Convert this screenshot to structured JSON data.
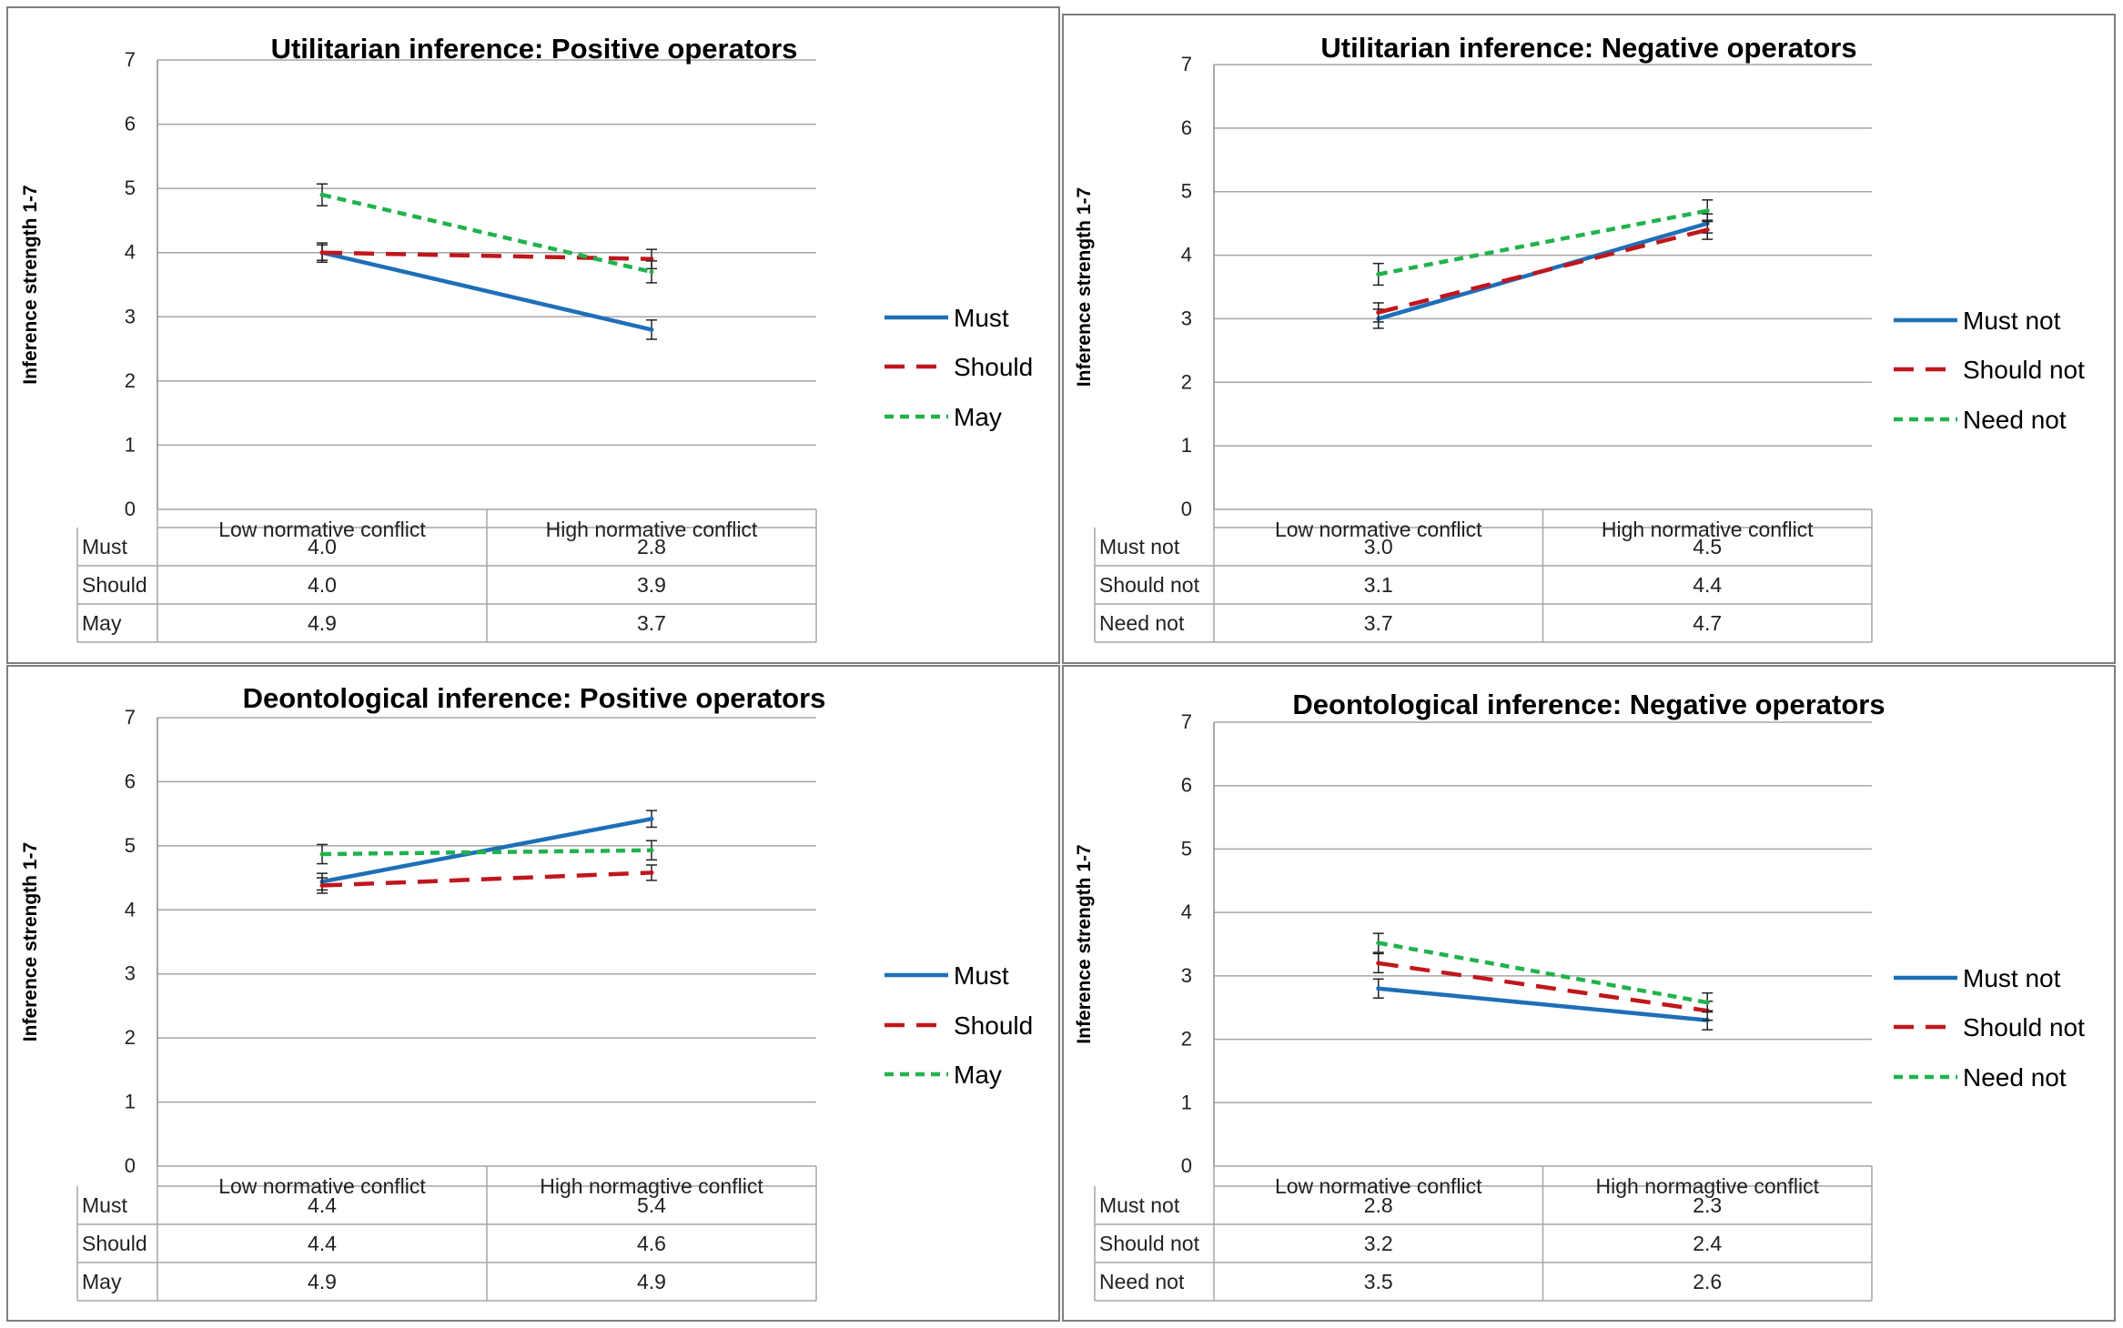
{
  "chart_data": [
    {
      "type": "line",
      "title": "Utilitarian inference: Positive operators",
      "ylabel": "Inference strength 1-7",
      "xlabel": "",
      "ylim": [
        0,
        7
      ],
      "yticks": [
        "0",
        "1",
        "2",
        "3",
        "4",
        "5",
        "6",
        "7"
      ],
      "categories": [
        "Low normative conflict",
        "High normative conflict"
      ],
      "legend_position": "right",
      "grid": true,
      "series": [
        {
          "name": "Must",
          "color": "#1f6fb8",
          "dash": "solid",
          "values": [
            4.0,
            2.8
          ],
          "labels": [
            "4.0",
            "2.8"
          ],
          "err": [
            0.15,
            0.15
          ]
        },
        {
          "name": "Should",
          "color": "#c0161c",
          "dash": "long",
          "values": [
            4.0,
            3.9
          ],
          "labels": [
            "4.0",
            "3.9"
          ],
          "err": [
            0.12,
            0.15
          ]
        },
        {
          "name": "May",
          "color": "#21b24c",
          "dash": "short",
          "values": [
            4.9,
            3.7
          ],
          "labels": [
            "4.9",
            "3.7"
          ],
          "err": [
            0.17,
            0.17
          ]
        }
      ]
    },
    {
      "type": "line",
      "title": "Utilitarian inference: Negative operators",
      "ylabel": "Inference strength 1-7",
      "xlabel": "",
      "ylim": [
        0,
        7
      ],
      "yticks": [
        "0",
        "1",
        "2",
        "3",
        "4",
        "5",
        "6",
        "7"
      ],
      "categories": [
        "Low normative conflict",
        "High normative conflict"
      ],
      "legend_position": "right",
      "grid": true,
      "series": [
        {
          "name": "Must not",
          "color": "#1f6fb8",
          "dash": "solid",
          "values": [
            3.0,
            4.5
          ],
          "labels": [
            "3.0",
            "4.5"
          ],
          "err": [
            0.15,
            0.15
          ]
        },
        {
          "name": "Should not",
          "color": "#c0161c",
          "dash": "long",
          "values": [
            3.1,
            4.4
          ],
          "labels": [
            "3.1",
            "4.4"
          ],
          "err": [
            0.15,
            0.15
          ]
        },
        {
          "name": "Need not",
          "color": "#21b24c",
          "dash": "short",
          "values": [
            3.7,
            4.7
          ],
          "labels": [
            "3.7",
            "4.7"
          ],
          "err": [
            0.17,
            0.17
          ]
        }
      ]
    },
    {
      "type": "line",
      "title": "Deontological inference: Positive operators",
      "ylabel": "Inference strength 1-7",
      "xlabel": "",
      "ylim": [
        0,
        7
      ],
      "yticks": [
        "0",
        "1",
        "2",
        "3",
        "4",
        "5",
        "6",
        "7"
      ],
      "categories": [
        "Low normative conflict",
        "High normagtive conflict"
      ],
      "legend_position": "right",
      "grid": true,
      "series": [
        {
          "name": "Must",
          "color": "#1f6fb8",
          "dash": "solid",
          "values": [
            4.44,
            5.42
          ],
          "labels": [
            "4.4",
            "5.4"
          ],
          "err": [
            0.13,
            0.13
          ]
        },
        {
          "name": "Should",
          "color": "#c0161c",
          "dash": "long",
          "values": [
            4.38,
            4.58
          ],
          "labels": [
            "4.4",
            "4.6"
          ],
          "err": [
            0.12,
            0.12
          ]
        },
        {
          "name": "May",
          "color": "#21b24c",
          "dash": "short",
          "values": [
            4.87,
            4.93
          ],
          "labels": [
            "4.9",
            "4.9"
          ],
          "err": [
            0.15,
            0.15
          ]
        }
      ]
    },
    {
      "type": "line",
      "title": "Deontological inference: Negative operators",
      "ylabel": "Inference strength 1-7",
      "xlabel": "",
      "ylim": [
        0,
        7
      ],
      "yticks": [
        "0",
        "1",
        "2",
        "3",
        "4",
        "5",
        "6",
        "7"
      ],
      "categories": [
        "Low normative conflict",
        "High normagtive conflict"
      ],
      "legend_position": "right",
      "grid": true,
      "series": [
        {
          "name": "Must not",
          "color": "#1f6fb8",
          "dash": "solid",
          "values": [
            2.8,
            2.3
          ],
          "labels": [
            "2.8",
            "2.3"
          ],
          "err": [
            0.15,
            0.15
          ]
        },
        {
          "name": "Should not",
          "color": "#c0161c",
          "dash": "long",
          "values": [
            3.2,
            2.45
          ],
          "labels": [
            "3.2",
            "2.4"
          ],
          "err": [
            0.15,
            0.15
          ]
        },
        {
          "name": "Need not",
          "color": "#21b24c",
          "dash": "short",
          "values": [
            3.52,
            2.58
          ],
          "labels": [
            "3.5",
            "2.6"
          ],
          "err": [
            0.15,
            0.15
          ]
        }
      ]
    }
  ]
}
